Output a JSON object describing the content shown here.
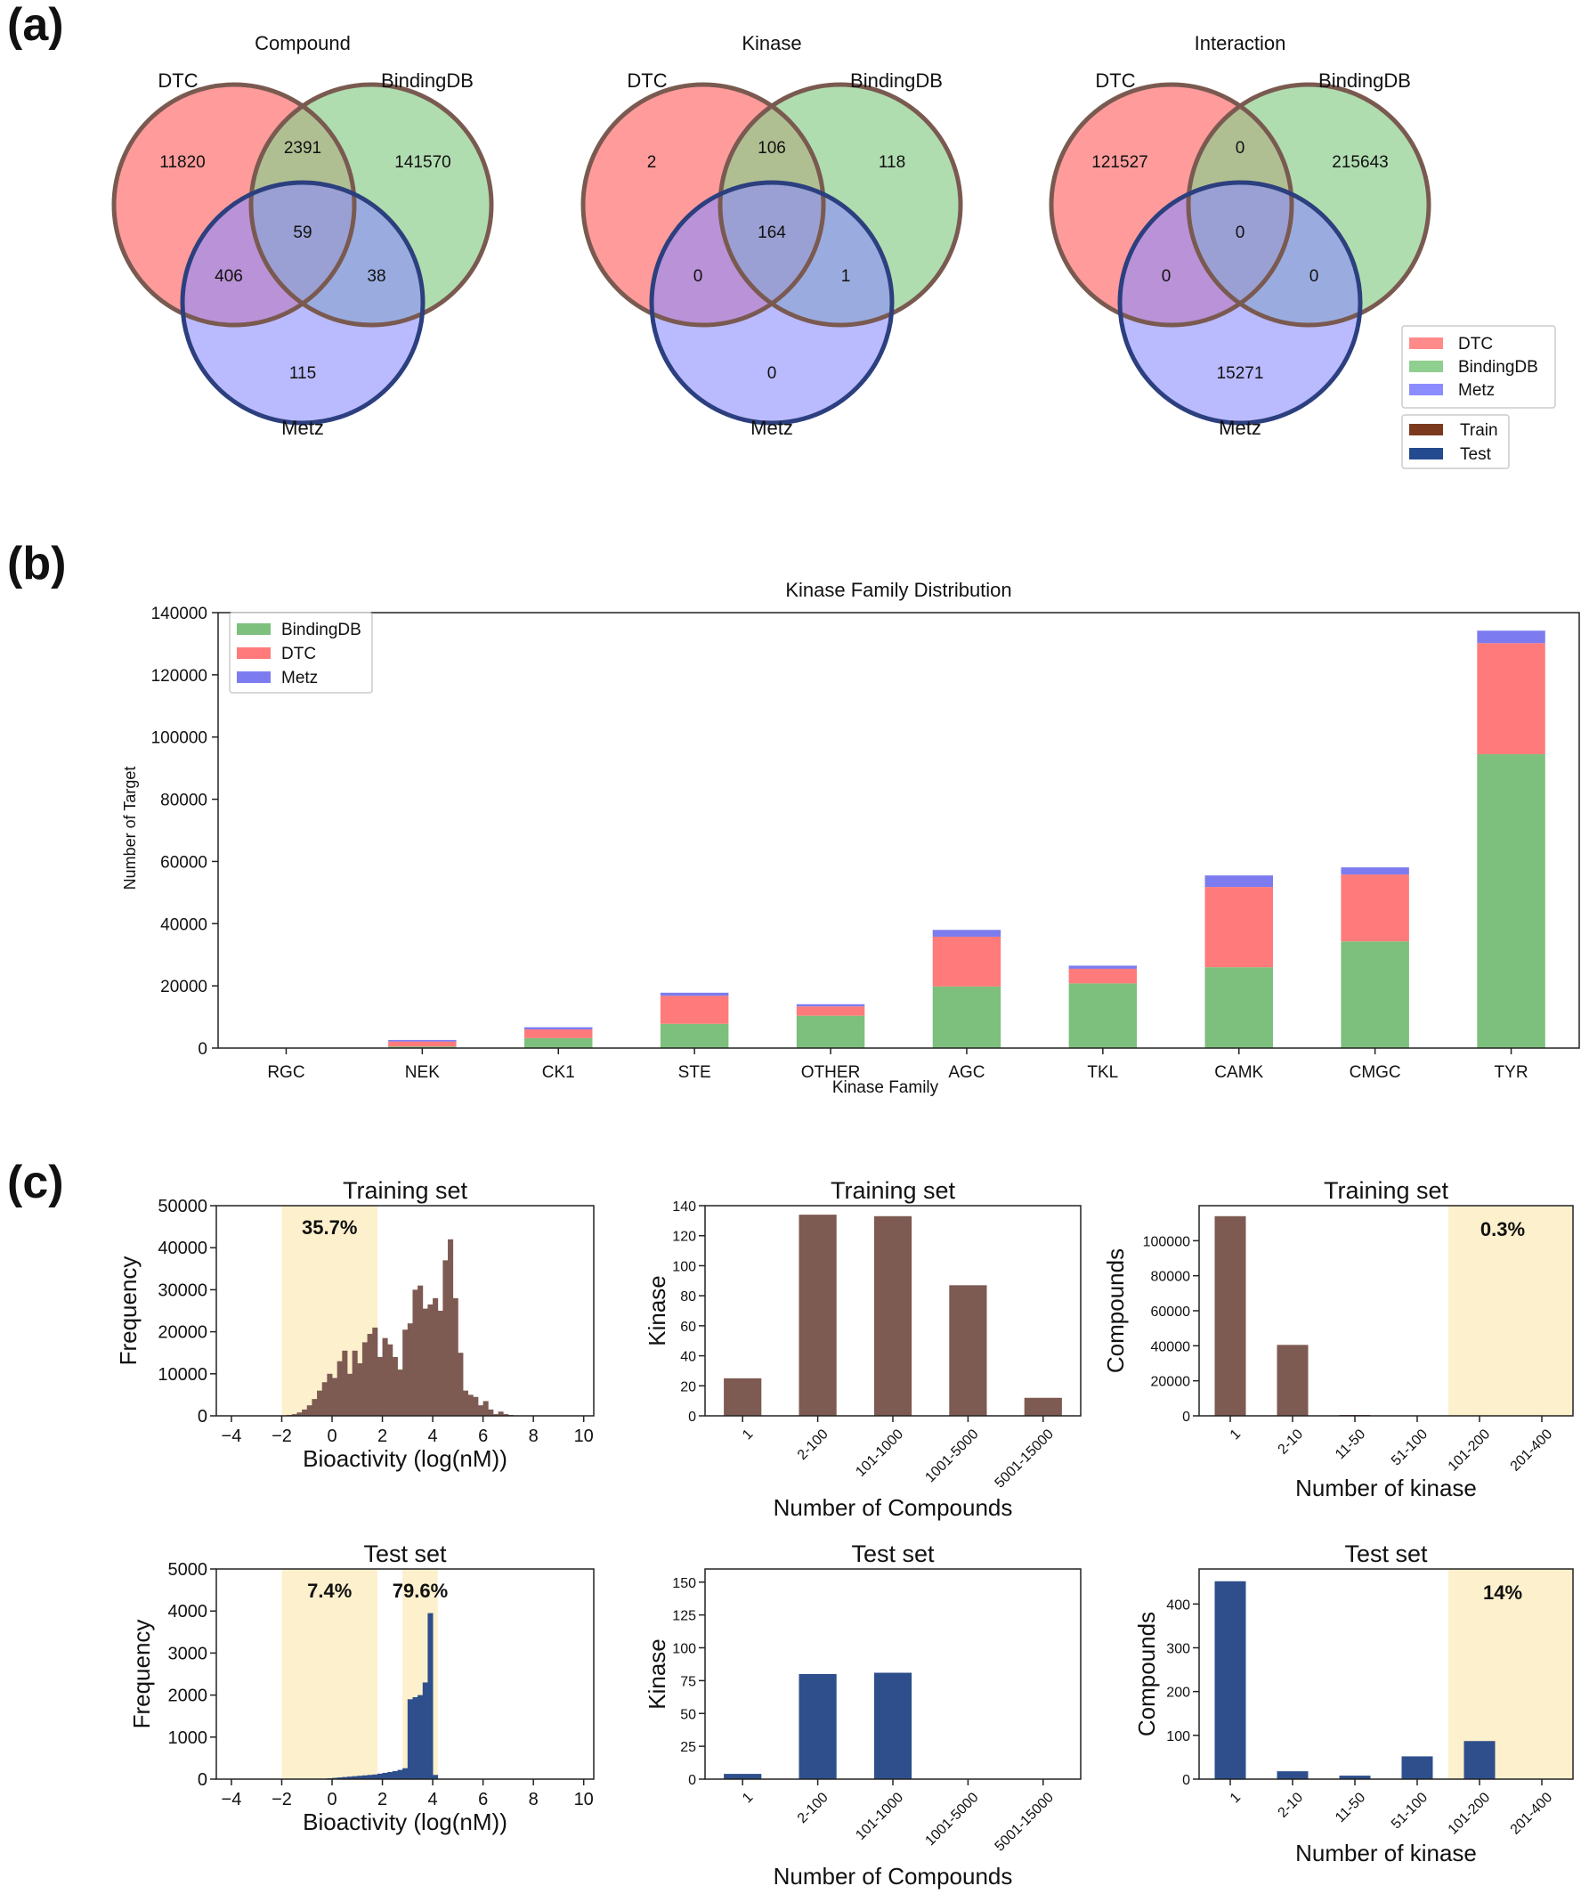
{
  "panels": {
    "a": "(a)",
    "b": "(b)",
    "c": "(c)"
  },
  "colors": {
    "dtc": "#ff8a8a",
    "bindingdb": "#8fcf8f",
    "metz": "#8c8cff",
    "train": "#7d5a52",
    "test": "#2e4f8c",
    "trainBorder": "#7a5a50",
    "testBorder": "#2c3f7e",
    "highlight": "#fdf0cc",
    "barGreen": "#7dbf7d",
    "barRed": "#ff7a7a",
    "barBlue": "#7c7cf0"
  },
  "chart_data": [
    {
      "type": "venn",
      "title": "Compound",
      "sets": [
        "DTC",
        "BindingDB",
        "Metz"
      ],
      "values": {
        "dtc_only": "11820",
        "dtc_bdb": "2391",
        "bdb_only": "141570",
        "all": "59",
        "dtc_metz": "406",
        "bdb_metz": "38",
        "metz_only": "115"
      }
    },
    {
      "type": "venn",
      "title": "Kinase",
      "sets": [
        "DTC",
        "BindingDB",
        "Metz"
      ],
      "values": {
        "dtc_only": "2",
        "dtc_bdb": "106",
        "bdb_only": "118",
        "all": "164",
        "dtc_metz": "0",
        "bdb_metz": "1",
        "metz_only": "0"
      }
    },
    {
      "type": "venn",
      "title": "Interaction",
      "sets": [
        "DTC",
        "BindingDB",
        "Metz"
      ],
      "values": {
        "dtc_only": "121527",
        "dtc_bdb": "0",
        "bdb_only": "215643",
        "all": "0",
        "dtc_metz": "0",
        "bdb_metz": "0",
        "metz_only": "15271"
      }
    },
    {
      "type": "bar",
      "stacked": true,
      "title": "Kinase Family Distribution",
      "xlabel": "Kinase Family",
      "ylabel": "Number of Target",
      "categories": [
        "RGC",
        "NEK",
        "CK1",
        "STE",
        "OTHER",
        "AGC",
        "TKL",
        "CAMK",
        "CMGC",
        "TYR"
      ],
      "series": [
        {
          "name": "BindingDB",
          "values": [
            0,
            500,
            3200,
            7800,
            10400,
            19800,
            20800,
            26000,
            34300,
            94500
          ]
        },
        {
          "name": "DTC",
          "values": [
            0,
            1600,
            2800,
            9000,
            3000,
            16000,
            4700,
            25800,
            21500,
            35700
          ]
        },
        {
          "name": "Metz",
          "values": [
            0,
            500,
            700,
            1000,
            700,
            2200,
            1000,
            3700,
            2300,
            4000
          ]
        }
      ],
      "ylim": [
        0,
        140000
      ],
      "yticks": [
        "0",
        "20000",
        "40000",
        "60000",
        "80000",
        "100000",
        "120000",
        "140000"
      ],
      "legend_position": "top-left"
    },
    {
      "type": "bar",
      "title": "Training set",
      "xlabel": "Bioactivity (log(nM))",
      "ylabel": "Frequency",
      "histogram": true,
      "bin_width": 0.2,
      "bins_from": -2.0,
      "values": [
        100,
        200,
        400,
        800,
        1500,
        2500,
        4000,
        6000,
        8000,
        10000,
        9000,
        13000,
        15500,
        10000,
        15500,
        12500,
        17500,
        19500,
        21000,
        14000,
        18500,
        17000,
        14000,
        11000,
        20500,
        22000,
        30000,
        31000,
        25500,
        26500,
        28000,
        25000,
        37000,
        42000,
        28000,
        15000,
        6000,
        5000,
        4500,
        2500,
        3500,
        1500,
        400,
        1000,
        400,
        200,
        100
      ],
      "xlim": [
        -4.6,
        10.4
      ],
      "ylim": [
        0,
        50000
      ],
      "xticks": [
        "−4",
        "−2",
        "0",
        "2",
        "4",
        "6",
        "8",
        "10"
      ],
      "yticks": [
        "0",
        "10000",
        "20000",
        "30000",
        "40000",
        "50000"
      ],
      "highlight_range": [
        -2,
        1.8
      ],
      "annotation": "35.7%"
    },
    {
      "type": "bar",
      "title": "Training set",
      "xlabel": "Number of Compounds",
      "ylabel": "Kinase",
      "categories": [
        "1",
        "2-100",
        "101-1000",
        "1001-5000",
        "5001-15000"
      ],
      "values": [
        25,
        134,
        133,
        87,
        12
      ],
      "ylim": [
        0,
        140
      ],
      "yticks": [
        "0",
        "20",
        "40",
        "60",
        "80",
        "100",
        "120",
        "140"
      ]
    },
    {
      "type": "bar",
      "title": "Training set",
      "xlabel": "Number of kinase",
      "ylabel": "Compounds",
      "categories": [
        "1",
        "2-10",
        "11-50",
        "51-100",
        "101-200",
        "201-400"
      ],
      "values": [
        114000,
        40500,
        500,
        200,
        150,
        100
      ],
      "ylim": [
        0,
        120000
      ],
      "yticks": [
        "0",
        "20000",
        "40000",
        "60000",
        "80000",
        "100000"
      ],
      "highlight_categories": [
        "101-200",
        "201-400"
      ],
      "annotation": "0.3%"
    },
    {
      "type": "bar",
      "title": "Test set",
      "xlabel": "Bioactivity (log(nM))",
      "ylabel": "Frequency",
      "histogram": true,
      "bin_width": 0.2,
      "bins_from": -2.0,
      "values": [
        0,
        0,
        0,
        0,
        0,
        0,
        0,
        5,
        10,
        20,
        30,
        40,
        50,
        60,
        70,
        80,
        90,
        100,
        110,
        130,
        150,
        170,
        190,
        220,
        260,
        1900,
        1950,
        2000,
        2300,
        3950,
        100
      ],
      "xlim": [
        -4.6,
        10.4
      ],
      "ylim": [
        0,
        5000
      ],
      "xticks": [
        "−4",
        "−2",
        "0",
        "2",
        "4",
        "6",
        "8",
        "10"
      ],
      "yticks": [
        "0",
        "1000",
        "2000",
        "3000",
        "4000",
        "5000"
      ],
      "highlight_ranges": [
        [
          -2,
          1.8
        ],
        [
          2.8,
          4.2
        ]
      ],
      "annotations": [
        "7.4%",
        "79.6%"
      ]
    },
    {
      "type": "bar",
      "title": "Test set",
      "xlabel": "Number of Compounds",
      "ylabel": "Kinase",
      "categories": [
        "1",
        "2-100",
        "101-1000",
        "1001-5000",
        "5001-15000"
      ],
      "values": [
        4,
        80,
        81,
        0,
        0
      ],
      "ylim": [
        0,
        160
      ],
      "yticks": [
        "0",
        "25",
        "50",
        "75",
        "100",
        "125",
        "150"
      ]
    },
    {
      "type": "bar",
      "title": "Test set",
      "xlabel": "Number of kinase",
      "ylabel": "Compounds",
      "categories": [
        "1",
        "2-10",
        "11-50",
        "51-100",
        "101-200",
        "201-400"
      ],
      "values": [
        452,
        18,
        8,
        52,
        87,
        0
      ],
      "ylim": [
        0,
        480
      ],
      "yticks": [
        "0",
        "100",
        "200",
        "300",
        "400"
      ],
      "highlight_categories": [
        "101-200",
        "201-400"
      ],
      "annotation": "14%"
    }
  ],
  "venn_legend": {
    "sets": [
      "DTC",
      "BindingDB",
      "Metz"
    ],
    "splits": [
      "Train",
      "Test"
    ]
  }
}
